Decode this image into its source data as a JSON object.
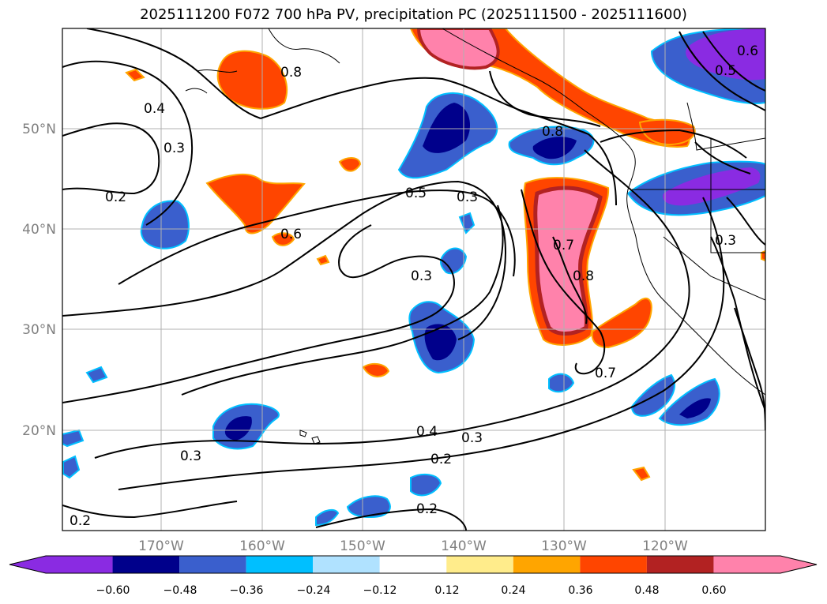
{
  "title": "2025111200 F072 700 hPa PV, precipitation PC (2025111500 - 2025111600)",
  "map": {
    "lat_ticks": [
      "50°N",
      "40°N",
      "30°N",
      "20°N"
    ],
    "lon_ticks": [
      "170°W",
      "160°W",
      "150°W",
      "140°W",
      "130°W",
      "120°W"
    ],
    "contour_labels": [
      "0.4",
      "0.3",
      "0.2",
      "0.8",
      "0.5",
      "0.6",
      "0.3",
      "0.3",
      "0.8",
      "0.7",
      "0.8",
      "0.7",
      "0.4",
      "0.3",
      "0.2",
      "0.3",
      "0.2",
      "0.2",
      "0.6",
      "0.3",
      "0.5"
    ]
  },
  "colorbar": {
    "tick_labels": [
      "−0.60",
      "−0.48",
      "−0.36",
      "−0.24",
      "−0.12",
      "0.12",
      "0.24",
      "0.36",
      "0.48",
      "0.60"
    ],
    "colors": [
      "#8a2be2",
      "#00008b",
      "#3a5fcd",
      "#00bfff",
      "#b0e2ff",
      "#ffffff",
      "#ffec8b",
      "#ffa500",
      "#ff4500",
      "#b22222",
      "#ff82ab"
    ]
  }
}
